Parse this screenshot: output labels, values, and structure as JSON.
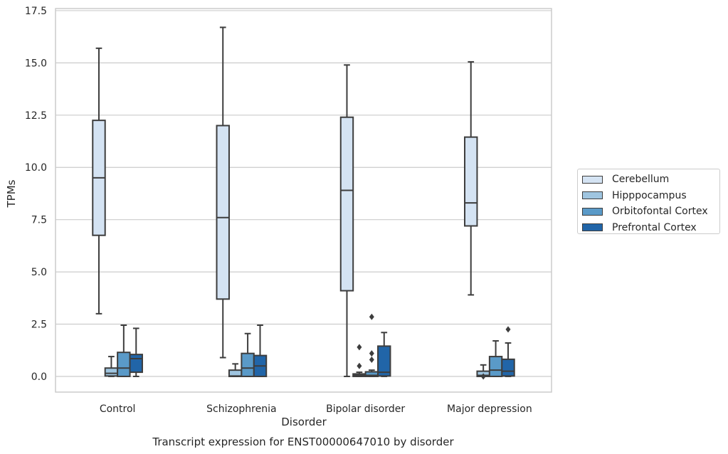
{
  "chart_data": {
    "type": "box",
    "title": "Transcript expression for ENST00000647010 by disorder",
    "xlabel": "Disorder",
    "ylabel": "TPMs",
    "ylim": [
      -0.75,
      17.6
    ],
    "yticks": [
      "0.0",
      "2.5",
      "5.0",
      "7.5",
      "10.0",
      "12.5",
      "15.0",
      "17.5"
    ],
    "grid": "horizontal",
    "legend_position": "right",
    "categories": [
      "Control",
      "Schizophrenia",
      "Bipolar disorder",
      "Major depression"
    ],
    "series": [
      {
        "name": "Cerebellum",
        "color": "#d4e3f3",
        "boxes": [
          {
            "whisker_low": 3.0,
            "q1": 6.75,
            "median": 9.5,
            "q3": 12.25,
            "whisker_high": 15.7,
            "outliers": []
          },
          {
            "whisker_low": 0.9,
            "q1": 3.7,
            "median": 7.6,
            "q3": 12.0,
            "whisker_high": 16.7,
            "outliers": []
          },
          {
            "whisker_low": 0.0,
            "q1": 4.1,
            "median": 8.9,
            "q3": 12.4,
            "whisker_high": 14.9,
            "outliers": []
          },
          {
            "whisker_low": 3.9,
            "q1": 7.2,
            "median": 8.3,
            "q3": 11.45,
            "whisker_high": 15.05,
            "outliers": []
          }
        ]
      },
      {
        "name": "Hipppocampus",
        "color": "#9fc5e0",
        "boxes": [
          {
            "whisker_low": 0.0,
            "q1": 0.02,
            "median": 0.15,
            "q3": 0.4,
            "whisker_high": 0.95,
            "outliers": []
          },
          {
            "whisker_low": 0.0,
            "q1": 0.0,
            "median": 0.02,
            "q3": 0.3,
            "whisker_high": 0.6,
            "outliers": []
          },
          {
            "whisker_low": 0.0,
            "q1": 0.0,
            "median": 0.05,
            "q3": 0.12,
            "whisker_high": 0.2,
            "outliers": [
              0.5,
              1.4
            ]
          },
          {
            "whisker_low": 0.0,
            "q1": 0.0,
            "median": 0.05,
            "q3": 0.25,
            "whisker_high": 0.55,
            "outliers": [
              0.0
            ]
          }
        ]
      },
      {
        "name": "Orbitofontal Cortex",
        "color": "#5a9ac8",
        "boxes": [
          {
            "whisker_low": 0.0,
            "q1": 0.0,
            "median": 0.4,
            "q3": 1.15,
            "whisker_high": 2.45,
            "outliers": []
          },
          {
            "whisker_low": 0.0,
            "q1": 0.0,
            "median": 0.4,
            "q3": 1.1,
            "whisker_high": 2.05,
            "outliers": []
          },
          {
            "whisker_low": 0.0,
            "q1": 0.0,
            "median": 0.05,
            "q3": 0.22,
            "whisker_high": 0.3,
            "outliers": [
              0.8,
              1.1,
              2.85
            ]
          },
          {
            "whisker_low": 0.0,
            "q1": 0.0,
            "median": 0.3,
            "q3": 0.95,
            "whisker_high": 1.7,
            "outliers": []
          }
        ]
      },
      {
        "name": "Prefrontal Cortex",
        "color": "#2165a8",
        "boxes": [
          {
            "whisker_low": 0.0,
            "q1": 0.2,
            "median": 0.85,
            "q3": 1.05,
            "whisker_high": 2.3,
            "outliers": []
          },
          {
            "whisker_low": 0.0,
            "q1": 0.0,
            "median": 0.5,
            "q3": 1.0,
            "whisker_high": 2.45,
            "outliers": []
          },
          {
            "whisker_low": 0.0,
            "q1": 0.02,
            "median": 0.2,
            "q3": 1.45,
            "whisker_high": 2.1,
            "outliers": []
          },
          {
            "whisker_low": 0.0,
            "q1": 0.02,
            "median": 0.25,
            "q3": 0.82,
            "whisker_high": 1.6,
            "outliers": [
              2.25
            ]
          }
        ]
      }
    ]
  }
}
